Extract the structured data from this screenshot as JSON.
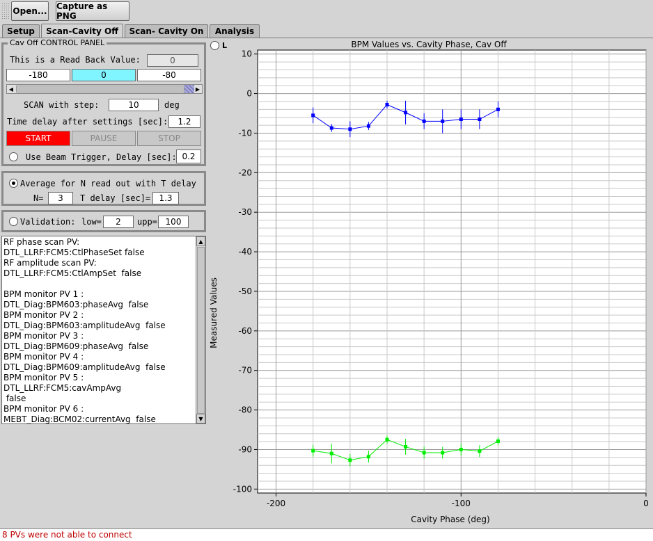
{
  "toolbar": {
    "open_label": "Open...",
    "capture_label": "Capture as PNG"
  },
  "tabs": [
    {
      "label": "Setup"
    },
    {
      "label": "Scan-Cavity Off"
    },
    {
      "label": "Scan- Cavity On"
    },
    {
      "label": "Analysis"
    }
  ],
  "control_panel": {
    "title": "Cav Off CONTROL PANEL",
    "readback_label": "This is a Read Back Value:",
    "readback_value": "0",
    "range_start": "-180",
    "range_current": "0",
    "range_end": "-80",
    "scan_step_label": "SCAN with step:",
    "scan_step_value": "10",
    "scan_step_unit": "deg",
    "time_delay_label": "Time delay after settings [sec]:",
    "time_delay_value": "1.2",
    "start_label": "START",
    "pause_label": "PAUSE",
    "stop_label": "STOP",
    "beam_trigger_label": "Use Beam Trigger, Delay [sec]:",
    "beam_trigger_value": "0.2"
  },
  "average_panel": {
    "label": "Average for N read out with T delay",
    "n_label": "N=",
    "n_value": "3",
    "t_label": "T delay [sec]=",
    "t_value": "1.3"
  },
  "validation_panel": {
    "label": "Validation:",
    "low_label": "low=",
    "low_value": "2",
    "upp_label": "upp=",
    "upp_value": "100"
  },
  "info_text": "RF phase scan PV: DTL_LLRF:FCM5:CtlPhaseSet false\nRF amplitude scan PV:\nDTL_LLRF:FCM5:CtlAmpSet  false\n\nBPM monitor PV 1 :\nDTL_Diag:BPM603:phaseAvg  false\nBPM monitor PV 2 :\nDTL_Diag:BPM603:amplitudeAvg  false\nBPM monitor PV 3 :\nDTL_Diag:BPM609:phaseAvg  false\nBPM monitor PV 4 :\nDTL_Diag:BPM609:amplitudeAvg  false\nBPM monitor PV 5 :  DTL_LLRF:FCM5:cavAmpAvg\n false\nBPM monitor PV 6 :\nMEBT_Diag:BCM02:currentAvg  false",
  "chart_toggle_label": "L",
  "status_text": "8 PVs were not able to connect",
  "colors": {
    "blue_series": "#0000ff",
    "green_series": "#00ee00",
    "current_field": "#80f4ff",
    "start_button": "#ff0000",
    "status_text": "#c00000"
  },
  "chart_data": {
    "type": "line",
    "title": "BPM Values vs. Cavity Phase, Cav Off",
    "xlabel": "Cavity Phase (deg)",
    "ylabel": "Measured Values",
    "xlim": [
      -210,
      0
    ],
    "ylim": [
      -101,
      11
    ],
    "x_ticks": [
      -200,
      -100,
      0
    ],
    "y_ticks": [
      10,
      0,
      -10,
      -20,
      -30,
      -40,
      -50,
      -60,
      -70,
      -80,
      -90,
      -100
    ],
    "grid": true,
    "series": [
      {
        "color": "#0000ff",
        "x": [
          -180,
          -170,
          -160,
          -150,
          -140,
          -130,
          -120,
          -110,
          -100,
          -90,
          -80
        ],
        "y": [
          -5.5,
          -8.7,
          -9.0,
          -8.2,
          -2.8,
          -4.8,
          -7.0,
          -7.0,
          -6.5,
          -6.5,
          -4.0
        ],
        "err": [
          2.0,
          1.0,
          2.0,
          1.0,
          1.0,
          3.0,
          2.0,
          3.0,
          2.5,
          2.5,
          2.0
        ]
      },
      {
        "color": "#00ee00",
        "x": [
          -180,
          -170,
          -160,
          -150,
          -140,
          -130,
          -120,
          -110,
          -100,
          -90,
          -80
        ],
        "y": [
          -90.3,
          -91.0,
          -92.7,
          -91.8,
          -87.5,
          -89.3,
          -90.8,
          -90.8,
          -90.0,
          -90.4,
          -87.9
        ],
        "err": [
          1.5,
          2.5,
          1.5,
          1.5,
          1.0,
          2.0,
          1.5,
          1.5,
          1.5,
          1.5,
          1.0
        ]
      }
    ]
  }
}
